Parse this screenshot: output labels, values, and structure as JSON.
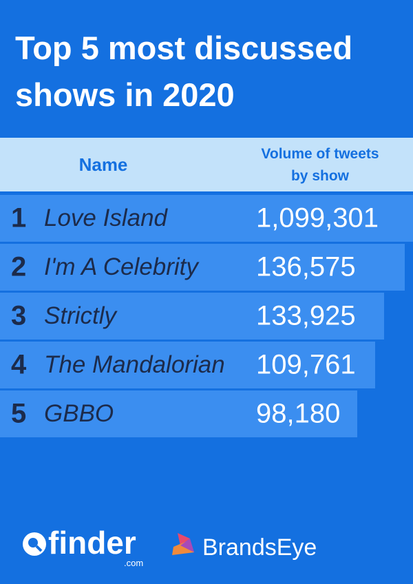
{
  "header": {
    "title": "Top 5 most discussed shows in 2020"
  },
  "table": {
    "columns": [
      "Name",
      "Volume of tweets by show"
    ],
    "rows": [
      [
        "1",
        "Love Island",
        "1,099,301"
      ],
      [
        "2",
        "I'm A Celebrity",
        "136,575"
      ],
      [
        "3",
        "Strictly",
        "133,925"
      ],
      [
        "4",
        "The Mandalorian",
        "109,761"
      ],
      [
        "5",
        "GBBO",
        "98,180"
      ]
    ]
  },
  "footer": {
    "logo1": "finder",
    "logo1_suffix": ".com",
    "logo2": "BrandsEye"
  }
}
